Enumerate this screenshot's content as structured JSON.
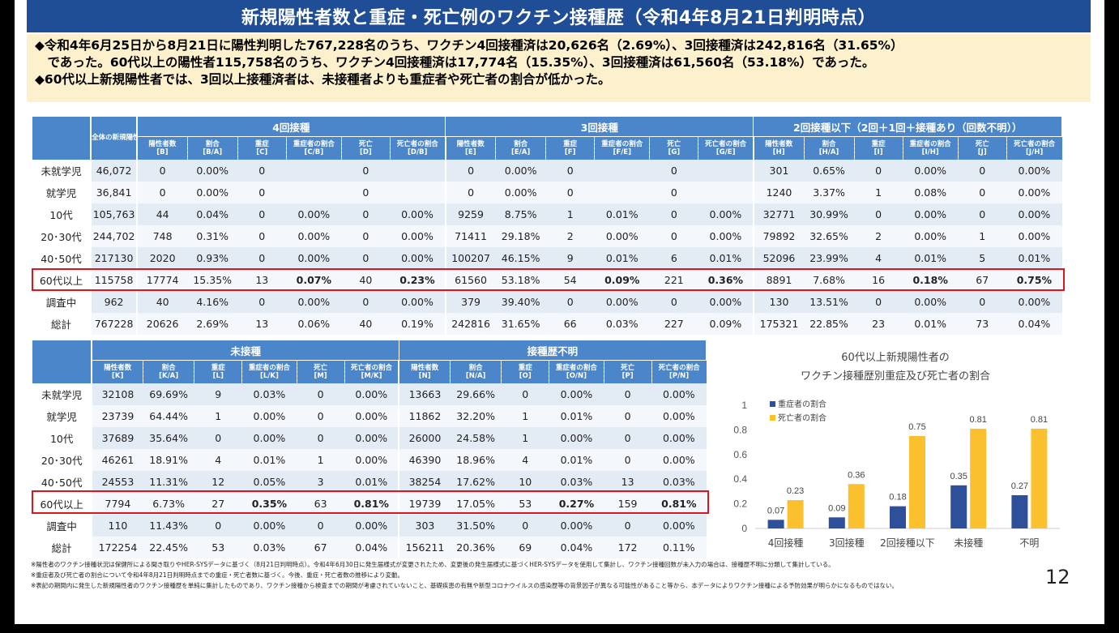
{
  "title": "新規陽性者数と重症・死亡例のワクチン接種歴（令和4年8月21日判明時点）",
  "summary": [
    "◆令和4年6月25日から8月21日に陽性判明した767,228名のうち、ワクチン4回接種済は20,626名（2.69%）、3回接種済は242,816名（31.65%）",
    "　であった。60代以上の陽性者115,758名のうち、ワクチン4回接種済は17,774名（15.35%）、3回接種済は61,560名（53.18%）であった。",
    "◆60代以上新規陽性者では、3回以上接種済者は、未接種者よりも重症者や死亡者の割合が低かった。"
  ],
  "table1": {
    "total_header": "全体の新規陽性者数 [A]",
    "groups": [
      "4回接種",
      "3回接種",
      "2回接種以下（2回＋1回＋接種あり（回数不明））"
    ],
    "cols": [
      [
        "陽性者数",
        "[B]"
      ],
      [
        "割合",
        "[B/A]"
      ],
      [
        "重症",
        "[C]"
      ],
      [
        "重症者の割合",
        "[C/B]"
      ],
      [
        "死亡",
        "[D]"
      ],
      [
        "死亡者の割合",
        "[D/B]"
      ],
      [
        "陽性者数",
        "[E]"
      ],
      [
        "割合",
        "[E/A]"
      ],
      [
        "重症",
        "[F]"
      ],
      [
        "重症者の割合",
        "[F/E]"
      ],
      [
        "死亡",
        "[G]"
      ],
      [
        "死亡者の割合",
        "[G/E]"
      ],
      [
        "陽性者数",
        "[H]"
      ],
      [
        "割合",
        "[H/A]"
      ],
      [
        "重症",
        "[I]"
      ],
      [
        "重症者の割合",
        "[I/H]"
      ],
      [
        "死亡",
        "[J]"
      ],
      [
        "死亡者の割合",
        "[J/H]"
      ]
    ],
    "rows": [
      {
        "label": "未就学児",
        "values": [
          "46,072",
          "0",
          "0.00%",
          "0",
          "",
          "0",
          "",
          "0",
          "0.00%",
          "0",
          "",
          "0",
          "",
          "301",
          "0.65%",
          "0",
          "0.00%",
          "0",
          "0.00%"
        ]
      },
      {
        "label": "就学児",
        "values": [
          "36,841",
          "0",
          "0.00%",
          "0",
          "",
          "0",
          "",
          "0",
          "0.00%",
          "0",
          "",
          "0",
          "",
          "1240",
          "3.37%",
          "1",
          "0.08%",
          "0",
          "0.00%"
        ]
      },
      {
        "label": "10代",
        "values": [
          "105,763",
          "44",
          "0.04%",
          "0",
          "0.00%",
          "0",
          "0.00%",
          "9259",
          "8.75%",
          "1",
          "0.01%",
          "0",
          "0.00%",
          "32771",
          "30.99%",
          "0",
          "0.00%",
          "0",
          "0.00%"
        ]
      },
      {
        "label": "20･30代",
        "values": [
          "244,702",
          "748",
          "0.31%",
          "0",
          "0.00%",
          "0",
          "0.00%",
          "71411",
          "29.18%",
          "2",
          "0.00%",
          "0",
          "0.00%",
          "79892",
          "32.65%",
          "2",
          "0.00%",
          "1",
          "0.00%"
        ]
      },
      {
        "label": "40･50代",
        "values": [
          "217130",
          "2020",
          "0.93%",
          "0",
          "0.00%",
          "0",
          "0.00%",
          "100207",
          "46.15%",
          "9",
          "0.01%",
          "6",
          "0.01%",
          "52096",
          "23.99%",
          "4",
          "0.01%",
          "5",
          "0.01%"
        ]
      },
      {
        "label": "60代以上",
        "values": [
          "115758",
          "17774",
          "15.35%",
          "13",
          "0.07%",
          "40",
          "0.23%",
          "61560",
          "53.18%",
          "54",
          "0.09%",
          "221",
          "0.36%",
          "8891",
          "7.68%",
          "16",
          "0.18%",
          "67",
          "0.75%"
        ]
      },
      {
        "label": "調査中",
        "values": [
          "962",
          "40",
          "4.16%",
          "0",
          "0.00%",
          "0",
          "0.00%",
          "379",
          "39.40%",
          "0",
          "0.00%",
          "0",
          "0.00%",
          "130",
          "13.51%",
          "0",
          "0.00%",
          "0",
          "0.00%"
        ]
      },
      {
        "label": "総計",
        "values": [
          "767228",
          "20626",
          "2.69%",
          "13",
          "0.06%",
          "40",
          "0.19%",
          "242816",
          "31.65%",
          "66",
          "0.03%",
          "227",
          "0.09%",
          "175321",
          "22.85%",
          "23",
          "0.01%",
          "73",
          "0.04%"
        ]
      }
    ]
  },
  "table2": {
    "groups": [
      "未接種",
      "接種歴不明"
    ],
    "cols": [
      [
        "陽性者数",
        "[K]"
      ],
      [
        "割合",
        "[K/A]"
      ],
      [
        "重症",
        "[L]"
      ],
      [
        "重症者の割合",
        "[L/K]"
      ],
      [
        "死亡",
        "[M]"
      ],
      [
        "死亡者の割合",
        "[M/K]"
      ],
      [
        "陽性者数",
        "[N]"
      ],
      [
        "割合",
        "[N/A]"
      ],
      [
        "重症",
        "[O]"
      ],
      [
        "重症者の割合",
        "[O/N]"
      ],
      [
        "死亡",
        "[P]"
      ],
      [
        "死亡者の割合",
        "[P/N]"
      ]
    ],
    "rows": [
      {
        "label": "未就学児",
        "values": [
          "32108",
          "69.69%",
          "9",
          "0.03%",
          "0",
          "0.00%",
          "13663",
          "29.66%",
          "0",
          "0.00%",
          "0",
          "0.00%"
        ]
      },
      {
        "label": "就学児",
        "values": [
          "23739",
          "64.44%",
          "1",
          "0.00%",
          "0",
          "0.00%",
          "11862",
          "32.20%",
          "1",
          "0.01%",
          "0",
          "0.00%"
        ]
      },
      {
        "label": "10代",
        "values": [
          "37689",
          "35.64%",
          "0",
          "0.00%",
          "0",
          "0.00%",
          "26000",
          "24.58%",
          "1",
          "0.00%",
          "0",
          "0.00%"
        ]
      },
      {
        "label": "20･30代",
        "values": [
          "46261",
          "18.91%",
          "4",
          "0.01%",
          "1",
          "0.00%",
          "46390",
          "18.96%",
          "4",
          "0.01%",
          "0",
          "0.00%"
        ]
      },
      {
        "label": "40･50代",
        "values": [
          "24553",
          "11.31%",
          "12",
          "0.05%",
          "3",
          "0.01%",
          "38254",
          "17.62%",
          "10",
          "0.03%",
          "13",
          "0.03%"
        ]
      },
      {
        "label": "60代以上",
        "values": [
          "7794",
          "6.73%",
          "27",
          "0.35%",
          "63",
          "0.81%",
          "19739",
          "17.05%",
          "53",
          "0.27%",
          "159",
          "0.81%"
        ]
      },
      {
        "label": "調査中",
        "values": [
          "110",
          "11.43%",
          "0",
          "0.00%",
          "0",
          "0.00%",
          "303",
          "31.50%",
          "0",
          "0.00%",
          "0",
          "0.00%"
        ]
      },
      {
        "label": "総計",
        "values": [
          "172254",
          "22.45%",
          "53",
          "0.03%",
          "67",
          "0.04%",
          "156211",
          "20.36%",
          "69",
          "0.04%",
          "172",
          "0.11%"
        ]
      }
    ]
  },
  "chart_data": {
    "type": "bar",
    "title": [
      "60代以上新規陽性者の",
      "ワクチン接種歴別重症及び死亡者の割合"
    ],
    "categories": [
      "4回接種",
      "3回接種",
      "2回接種以下",
      "未接種",
      "不明"
    ],
    "series": [
      {
        "name": "重症者の割合",
        "values": [
          0.07,
          0.09,
          0.18,
          0.35,
          0.27
        ],
        "color": "#2e4f9a"
      },
      {
        "name": "死亡者の割合",
        "values": [
          0.23,
          0.36,
          0.75,
          0.81,
          0.81
        ],
        "color": "#fbc02d"
      }
    ],
    "yticks": [
      "0",
      "0.2",
      "0.4",
      "0.6",
      "0.8",
      "1"
    ],
    "ylim": [
      0,
      1
    ],
    "legend_position": "top-left",
    "grid": false
  },
  "footnotes": [
    "※陽性者のワクチン接種状況は保健所による聞き取りやHER-SYSデータに基づく（8月21日判明時点）。令和4年6月30日に発生届様式が変更されたため、変更後の発生届様式に基づくHER-SYSデータを使用して集計し、ワクチン接種回数が未入力の場合は、接種歴不明に分類して集計している。",
    "※重症者及び死亡者の割合について令和4年8月21日判明時点までの重症・死亡者数に基づく。今後、重症・死亡者数の推移により変動。",
    "※表記の期間内に発生した新規陽性者のワクチン接種歴を単純に集計したものであり、ワクチン接種から検査までの期間が考慮されていないこと、基礎疾患の有無や新型コロナウイルスの感染歴等の背景因子が異なる可能性があること等から、本データによりワクチン接種による予防効果が明らかになるものではない。"
  ],
  "page_number": "12",
  "colors": {
    "header": "#4a86c9",
    "title_bar": "#1f4e96",
    "summary_bg": "#fdf0cc",
    "highlight": "#e0141e"
  }
}
